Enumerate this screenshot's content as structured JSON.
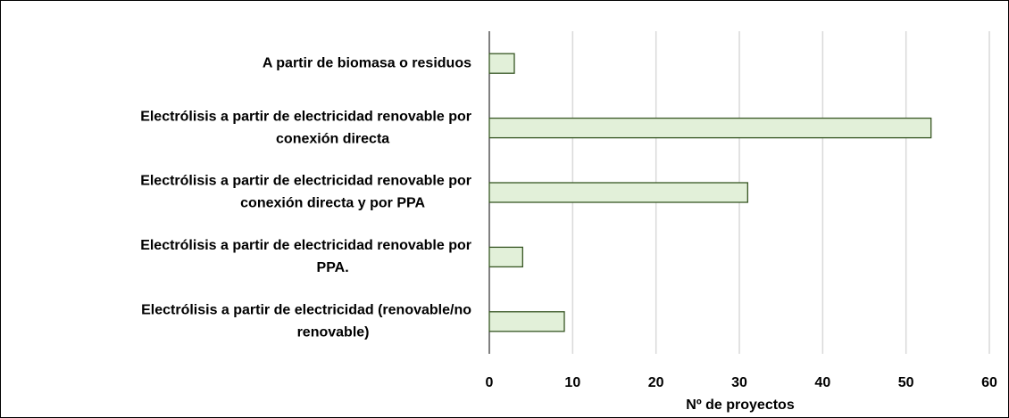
{
  "chart_data": {
    "type": "bar",
    "orientation": "horizontal",
    "x_label": "Nº de proyectos",
    "categories": [
      [
        "A partir de biomasa o residuos"
      ],
      [
        "Electrólisis a partir de electricidad renovable por",
        "conexión directa"
      ],
      [
        "Electrólisis a partir de electricidad renovable por",
        "conexión directa y por PPA"
      ],
      [
        "Electrólisis a partir de electricidad renovable por",
        "PPA."
      ],
      [
        "Electrólisis a partir de electricidad (renovable/no",
        "renovable)"
      ]
    ],
    "values": [
      3,
      53,
      31,
      4,
      9
    ],
    "color": "#e2f0d9",
    "edge_color": "#375623",
    "xlim": [
      0,
      60
    ],
    "xticks": [
      0,
      10,
      20,
      30,
      40,
      50,
      60
    ],
    "grid": true
  }
}
